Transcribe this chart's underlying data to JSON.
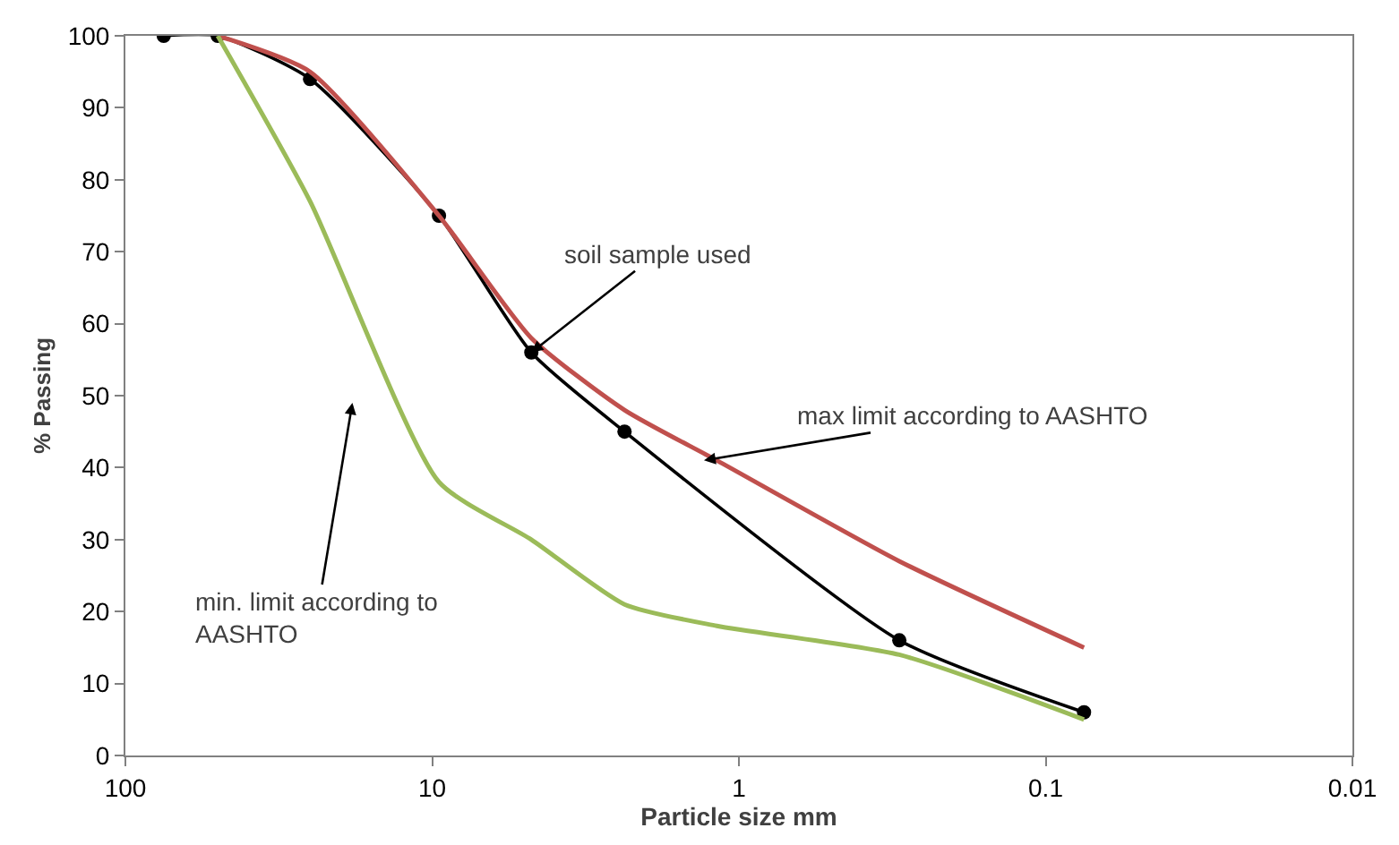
{
  "chart_data": {
    "type": "line",
    "xlabel": "Particle size mm",
    "ylabel": "% Passing",
    "log": "x",
    "xlim": [
      100,
      0.01
    ],
    "xticks": [
      100,
      10,
      1,
      0.1,
      0.01
    ],
    "ylim": [
      0,
      100
    ],
    "yticks": [
      0,
      10,
      20,
      30,
      40,
      50,
      60,
      70,
      80,
      90,
      100
    ],
    "series": [
      {
        "color": "#000000",
        "marker": "circle",
        "x": [
          75,
          50,
          25,
          9.5,
          4.75,
          2.36,
          0.3,
          0.075
        ],
        "values": [
          100,
          100,
          94,
          75,
          56,
          45,
          16,
          6
        ]
      },
      {
        "color": "#c0504d",
        "marker": "none",
        "x": [
          50,
          25,
          9.5,
          4.75,
          2.36,
          1.18,
          0.3,
          0.075
        ],
        "values": [
          100,
          95,
          75,
          58,
          48,
          41,
          27,
          15
        ]
      },
      {
        "color": "#9bbb59",
        "marker": "none",
        "x": [
          50,
          25,
          9.5,
          4.75,
          2.36,
          1.18,
          0.3,
          0.075
        ],
        "values": [
          100,
          77,
          38,
          30,
          21,
          18,
          14,
          5
        ]
      }
    ],
    "annotations": [
      {
        "text": "soil sample used",
        "x": 4.75,
        "y": 56
      },
      {
        "text": "max limit according to AASHTO",
        "x": 1.3,
        "y": 41
      },
      "min. limit according to\nAASHTO"
    ]
  }
}
